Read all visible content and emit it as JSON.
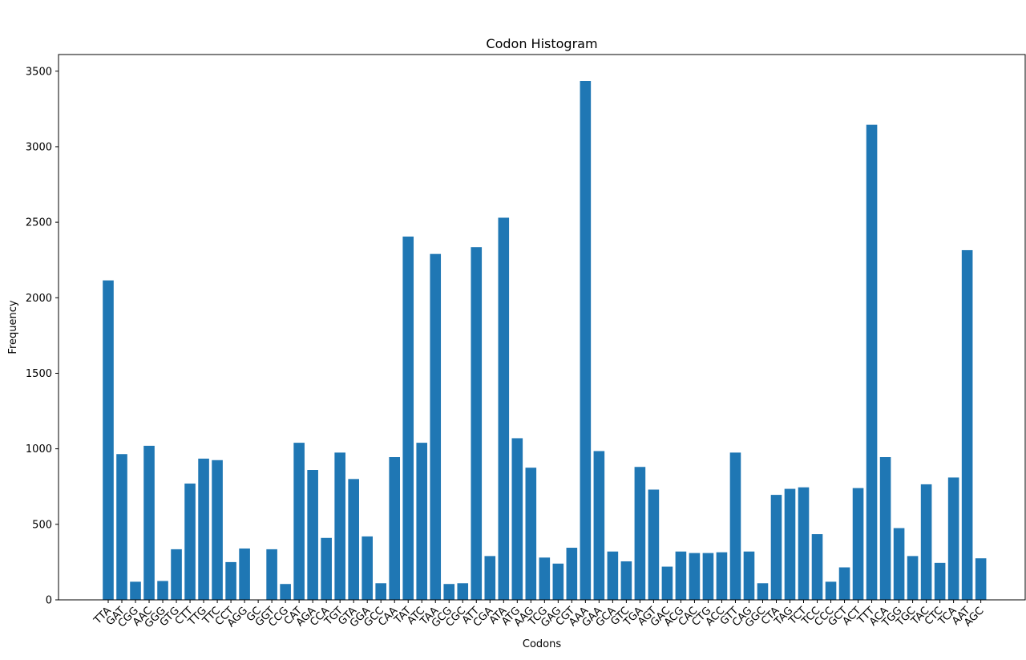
{
  "chart_data": {
    "type": "bar",
    "title": "Codon Histogram",
    "xlabel": "Codons",
    "ylabel": "Frequency",
    "ylim": [
      0,
      3600
    ],
    "yticks": [
      0,
      500,
      1000,
      1500,
      2000,
      2500,
      3000,
      3500
    ],
    "grid": false,
    "color": "#1f77b4",
    "categories": [
      "TTA",
      "GAT",
      "CGG",
      "AAC",
      "GGG",
      "GTG",
      "CTT",
      "TTG",
      "TTC",
      "CCT",
      "AGG",
      "GC",
      "GGT",
      "CCG",
      "CAT",
      "AGA",
      "CCA",
      "TGT",
      "GTA",
      "GGA",
      "GCC",
      "CAA",
      "TAT",
      "ATC",
      "TAA",
      "GCG",
      "CGC",
      "ATT",
      "CGA",
      "ATA",
      "ATG",
      "AAG",
      "TCG",
      "GAG",
      "CGT",
      "AAA",
      "GAA",
      "GCA",
      "GTC",
      "TGA",
      "AGT",
      "GAC",
      "ACG",
      "CAC",
      "CTG",
      "ACC",
      "GTT",
      "CAG",
      "GGC",
      "CTA",
      "TAG",
      "TCT",
      "TCC",
      "CCC",
      "GCT",
      "ACT",
      "TTT",
      "ACA",
      "TGG",
      "TGC",
      "TAC",
      "CTC",
      "TCA",
      "AAT",
      "AGC"
    ],
    "values": [
      2115,
      965,
      120,
      1020,
      125,
      335,
      770,
      935,
      925,
      250,
      340,
      0,
      335,
      105,
      1040,
      860,
      410,
      975,
      800,
      420,
      110,
      945,
      2405,
      1040,
      2290,
      105,
      110,
      2335,
      290,
      2530,
      1070,
      875,
      280,
      240,
      345,
      3435,
      985,
      320,
      255,
      880,
      730,
      220,
      320,
      310,
      310,
      315,
      975,
      320,
      110,
      695,
      735,
      745,
      435,
      120,
      215,
      740,
      3145,
      945,
      475,
      290,
      765,
      245,
      810,
      2315,
      275
    ]
  }
}
